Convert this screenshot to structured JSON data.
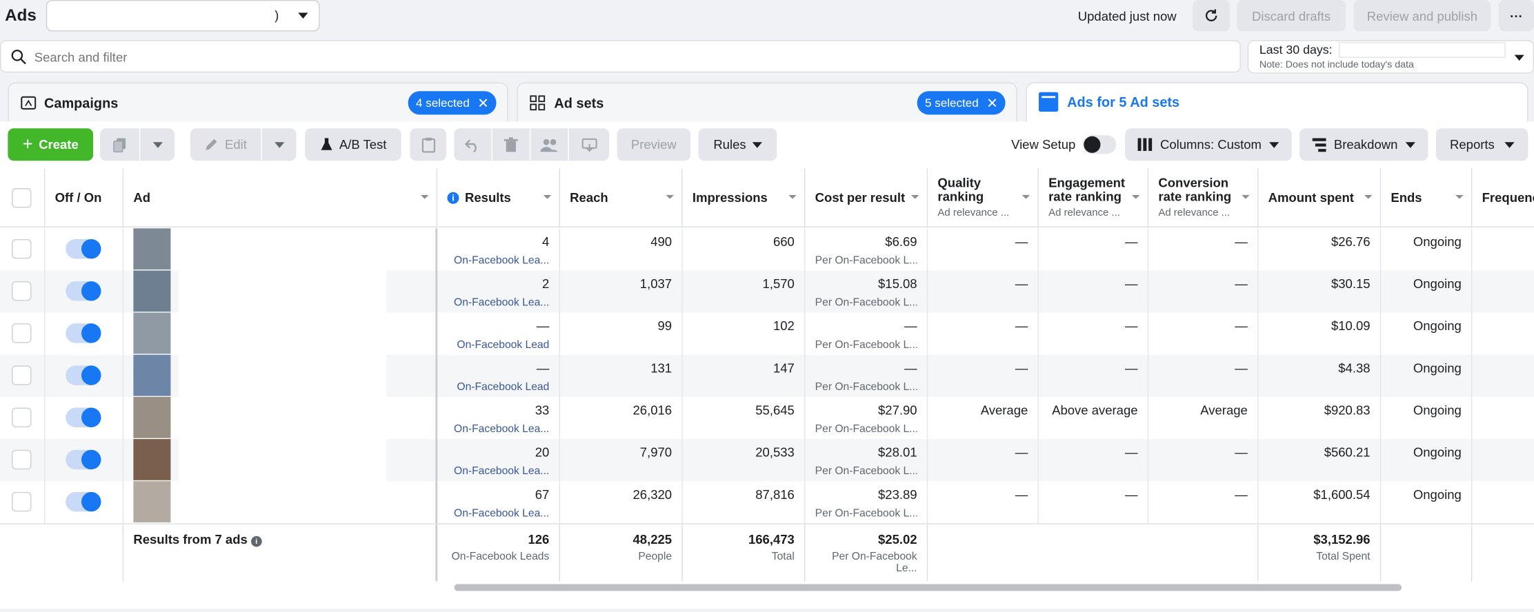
{
  "topbar": {
    "title": "Ads",
    "account_suffix": ")",
    "updated": "Updated just now",
    "discard": "Discard drafts",
    "review": "Review and publish",
    "more": "···"
  },
  "search": {
    "placeholder": "Search and filter"
  },
  "daterange": {
    "label": "Last 30 days:",
    "note": "Note: Does not include today's data"
  },
  "tabs": {
    "campaigns": "Campaigns",
    "campaigns_selected": "4 selected",
    "adsets": "Ad sets",
    "adsets_selected": "5 selected",
    "ads": "Ads for 5 Ad sets"
  },
  "toolbar": {
    "create": "Create",
    "edit": "Edit",
    "abtest": "A/B Test",
    "preview": "Preview",
    "rules": "Rules",
    "view_setup": "View Setup",
    "columns": "Columns: Custom",
    "breakdown": "Breakdown",
    "reports": "Reports"
  },
  "headers": {
    "offon": "Off / On",
    "ad": "Ad",
    "results": "Results",
    "reach": "Reach",
    "impressions": "Impressions",
    "cpr": "Cost per result",
    "quality": "Quality ranking",
    "quality_sub": "Ad relevance ...",
    "engagement": "Engagement rate ranking",
    "engagement_sub": "Ad relevance ...",
    "conversion": "Conversion rate ranking",
    "conversion_sub": "Ad relevance ...",
    "amount": "Amount spent",
    "ends": "Ends",
    "frequency": "Frequenc"
  },
  "rows": [
    {
      "results": "4",
      "results_sub": "On-Facebook Lea...",
      "reach": "490",
      "impressions": "660",
      "cpr": "$6.69",
      "cpr_sub": "Per On-Facebook L...",
      "quality": "—",
      "engagement": "—",
      "conversion": "—",
      "amount": "$26.76",
      "ends": "Ongoing"
    },
    {
      "results": "2",
      "results_sub": "On-Facebook Lea...",
      "reach": "1,037",
      "impressions": "1,570",
      "cpr": "$15.08",
      "cpr_sub": "Per On-Facebook L...",
      "quality": "—",
      "engagement": "—",
      "conversion": "—",
      "amount": "$30.15",
      "ends": "Ongoing"
    },
    {
      "results": "—",
      "results_sub": "On-Facebook Lead",
      "reach": "99",
      "impressions": "102",
      "cpr": "—",
      "cpr_sub": "Per On-Facebook L...",
      "quality": "—",
      "engagement": "—",
      "conversion": "—",
      "amount": "$10.09",
      "ends": "Ongoing"
    },
    {
      "results": "—",
      "results_sub": "On-Facebook Lead",
      "reach": "131",
      "impressions": "147",
      "cpr": "—",
      "cpr_sub": "Per On-Facebook L...",
      "quality": "—",
      "engagement": "—",
      "conversion": "—",
      "amount": "$4.38",
      "ends": "Ongoing"
    },
    {
      "results": "33",
      "results_sub": "On-Facebook Lea...",
      "reach": "26,016",
      "impressions": "55,645",
      "cpr": "$27.90",
      "cpr_sub": "Per On-Facebook L...",
      "quality": "Average",
      "engagement": "Above average",
      "conversion": "Average",
      "amount": "$920.83",
      "ends": "Ongoing"
    },
    {
      "results": "20",
      "results_sub": "On-Facebook Lea...",
      "reach": "7,970",
      "impressions": "20,533",
      "cpr": "$28.01",
      "cpr_sub": "Per On-Facebook L...",
      "quality": "—",
      "engagement": "—",
      "conversion": "—",
      "amount": "$560.21",
      "ends": "Ongoing"
    },
    {
      "results": "67",
      "results_sub": "On-Facebook Lea...",
      "reach": "26,320",
      "impressions": "87,816",
      "cpr": "$23.89",
      "cpr_sub": "Per On-Facebook L...",
      "quality": "—",
      "engagement": "—",
      "conversion": "—",
      "amount": "$1,600.54",
      "ends": "Ongoing"
    }
  ],
  "footer": {
    "label": "Results from 7 ads",
    "results": "126",
    "results_sub": "On-Facebook Leads",
    "reach": "48,225",
    "reach_sub": "People",
    "impressions": "166,473",
    "impressions_sub": "Total",
    "cpr": "$25.02",
    "cpr_sub": "Per On-Facebook Le...",
    "amount": "$3,152.96",
    "amount_sub": "Total Spent"
  },
  "colors": {
    "accent": "#1877f2",
    "create": "#42b72a"
  }
}
